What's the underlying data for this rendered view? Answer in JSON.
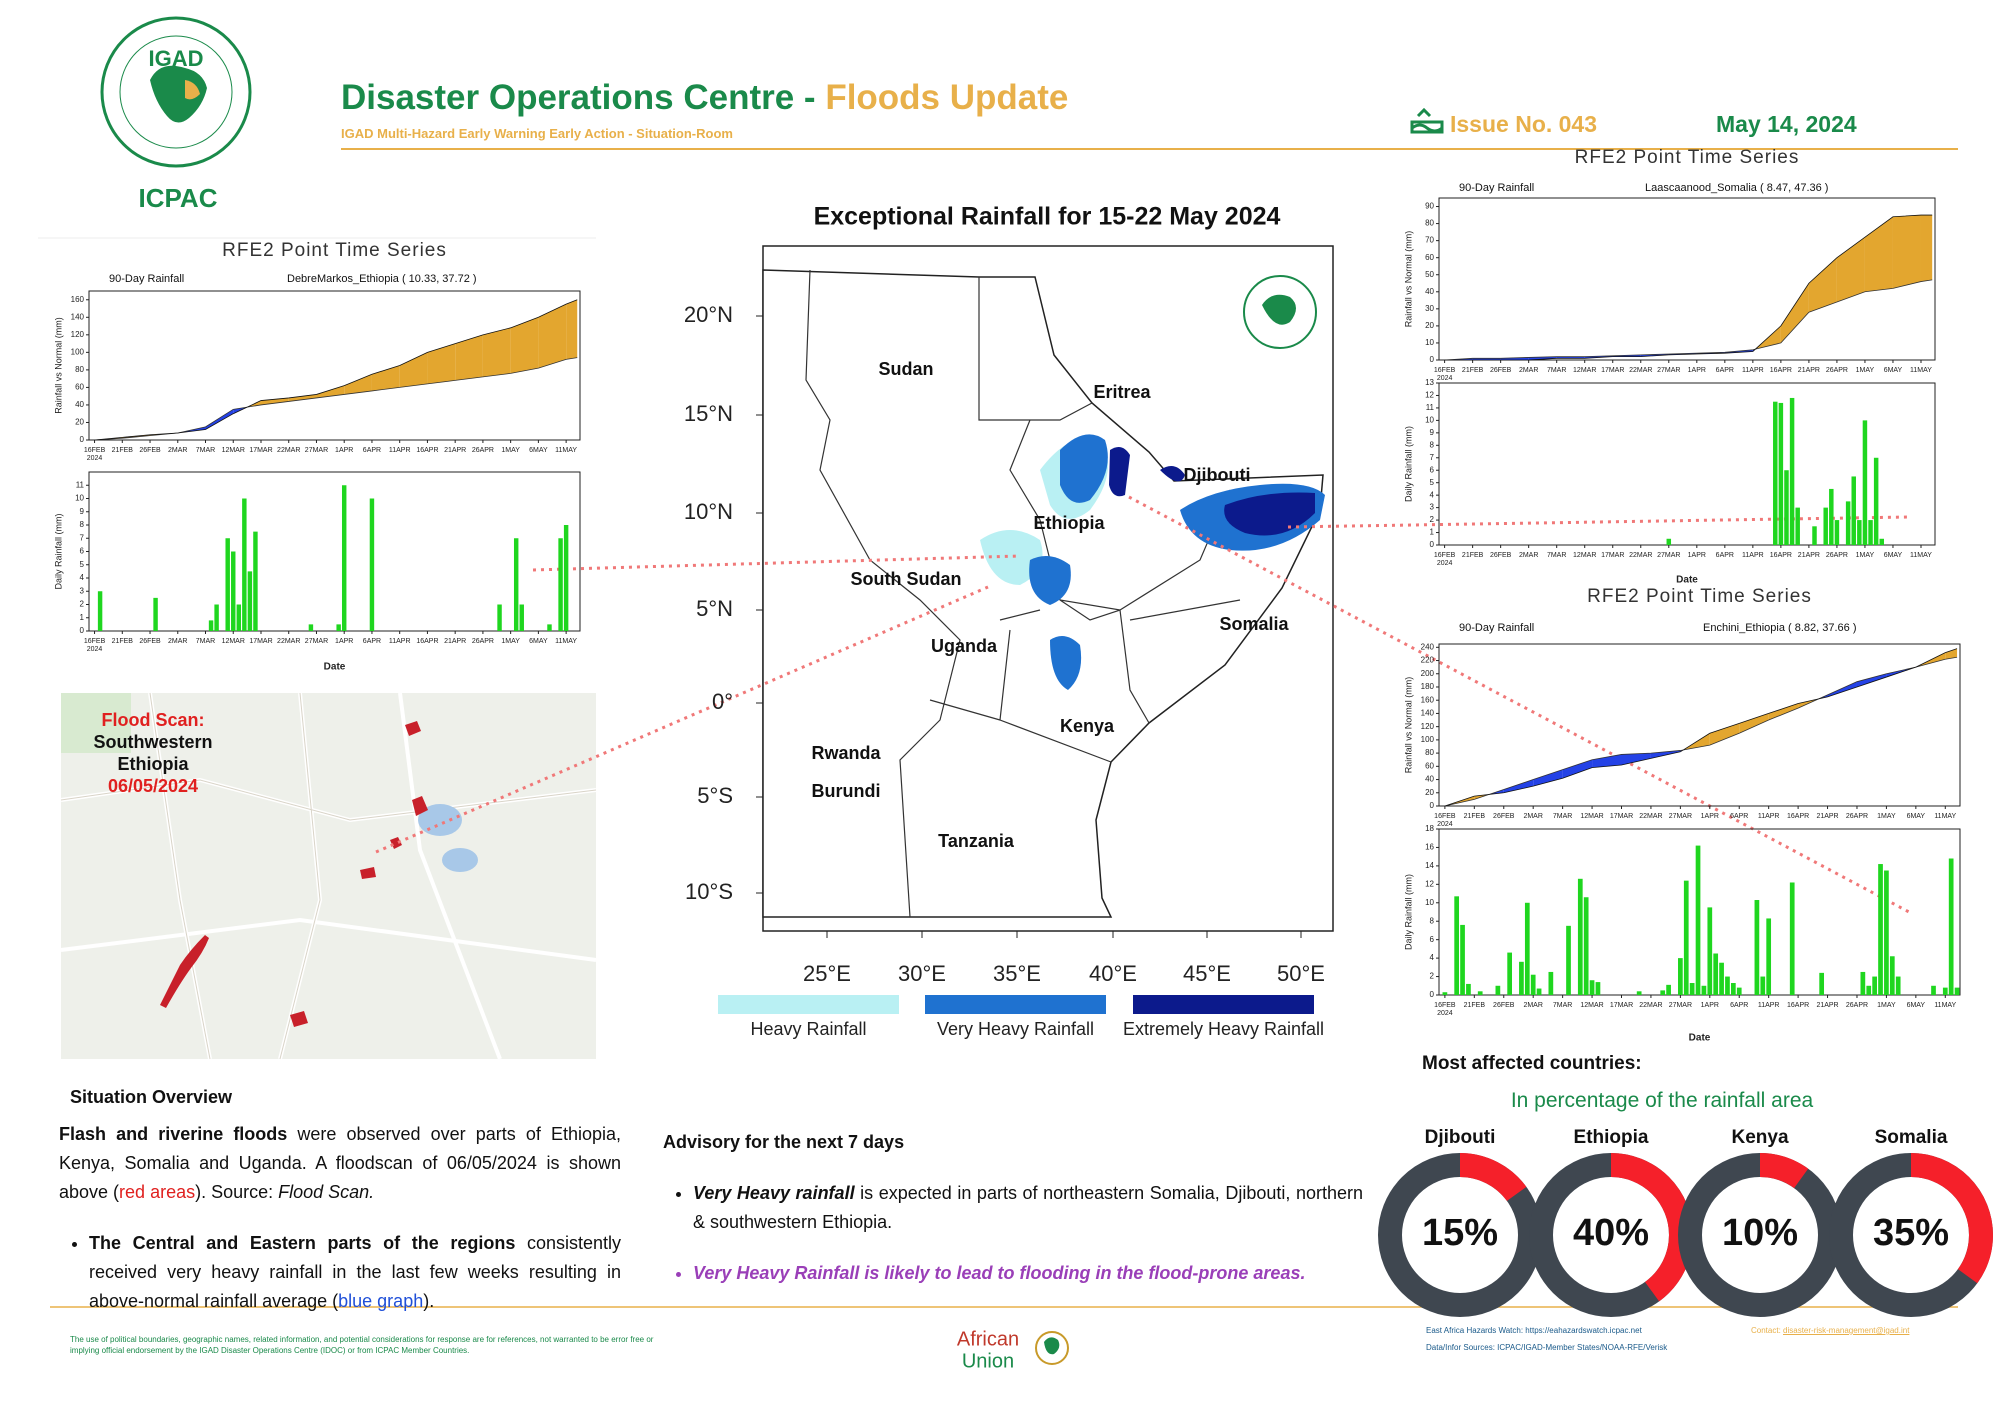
{
  "header": {
    "title_main": "Disaster Operations Centre - ",
    "title_accent": "Floods Update",
    "subtitle": "IGAD Multi-Hazard Early Warning Early Action - Situation-Room",
    "issue": "Issue No. 043",
    "date": "May 14, 2024",
    "logo_text": "IGAD",
    "logo_caption": "ICPAC"
  },
  "date_axis": {
    "xlim": [
      -1,
      87.5
    ],
    "year": "2024",
    "label": "Date",
    "xticks": [
      {
        "value": 0,
        "label": "16FEB"
      },
      {
        "value": 5,
        "label": "21FEB"
      },
      {
        "value": 10,
        "label": "26FEB"
      },
      {
        "value": 15,
        "label": "2MAR"
      },
      {
        "value": 20,
        "label": "7MAR"
      },
      {
        "value": 25,
        "label": "12MAR"
      },
      {
        "value": 30,
        "label": "17MAR"
      },
      {
        "value": 35,
        "label": "22MAR"
      },
      {
        "value": 40,
        "label": "27MAR"
      },
      {
        "value": 45,
        "label": "1APR"
      },
      {
        "value": 50,
        "label": "6APR"
      },
      {
        "value": 55,
        "label": "11APR"
      },
      {
        "value": 60,
        "label": "16APR"
      },
      {
        "value": 65,
        "label": "21APR"
      },
      {
        "value": 70,
        "label": "26APR"
      },
      {
        "value": 75,
        "label": "1MAY"
      },
      {
        "value": 80,
        "label": "6MAY"
      },
      {
        "value": 85,
        "label": "11MAY"
      }
    ]
  },
  "timeseries": [
    {
      "title": "RFE2 Point Time Series",
      "subtitle": "90-Day Rainfall",
      "location": "DebreMarkos_Ethiopia ( 10.33, 37.72 )",
      "cumulative": {
        "ylabel": "Rainfall vs Normal (mm)",
        "ylim": [
          0,
          170
        ],
        "yticks": [
          0,
          20,
          40,
          60,
          80,
          100,
          120,
          140,
          160
        ],
        "x": [
          0,
          5,
          10,
          15,
          20,
          25,
          30,
          35,
          40,
          45,
          50,
          55,
          60,
          65,
          70,
          75,
          80,
          85,
          87
        ],
        "rain": [
          0,
          3,
          6,
          8,
          12,
          30,
          45,
          48,
          52,
          62,
          75,
          85,
          100,
          110,
          120,
          128,
          140,
          155,
          160
        ],
        "normal": [
          0,
          2,
          5,
          8,
          15,
          35,
          40,
          44,
          48,
          52,
          56,
          60,
          64,
          68,
          72,
          76,
          82,
          92,
          94
        ],
        "above_color": "#e3a62f",
        "below_color": "#2442e6"
      },
      "daily": {
        "ylabel": "Daily Rainfall (mm)",
        "ylim": [
          0,
          12
        ],
        "yticks": [
          0,
          1,
          2,
          3,
          4,
          5,
          6,
          7,
          8,
          9,
          10,
          11
        ],
        "color": "#1fd61f",
        "x": [
          1,
          11,
          21,
          22,
          24,
          25,
          26,
          27,
          28,
          29,
          39,
          44,
          45,
          50,
          73,
          76,
          77,
          82,
          84,
          85
        ],
        "values": [
          3,
          2.5,
          0.8,
          2,
          7,
          6,
          2,
          10,
          4.5,
          7.5,
          0.5,
          0.5,
          11,
          10,
          2,
          7,
          2,
          0.5,
          7,
          8
        ]
      }
    },
    {
      "title": "RFE2 Point Time Series",
      "subtitle": "90-Day Rainfall",
      "location": "Laascaanood_Somalia ( 8.47, 47.36 )",
      "cumulative": {
        "ylabel": "Rainfall vs Normal (mm)",
        "ylim": [
          0,
          95
        ],
        "yticks": [
          0,
          10,
          20,
          30,
          40,
          50,
          60,
          70,
          80,
          90
        ],
        "x": [
          0,
          5,
          10,
          15,
          20,
          25,
          30,
          35,
          40,
          45,
          50,
          55,
          60,
          65,
          70,
          75,
          80,
          85,
          87
        ],
        "rain": [
          0,
          0,
          0,
          0,
          1,
          1,
          2,
          2,
          3,
          3.5,
          4,
          5,
          20,
          45,
          60,
          72,
          84,
          85,
          85
        ],
        "normal": [
          0,
          1,
          1,
          1.5,
          2,
          2,
          2.5,
          3,
          3.5,
          4,
          4.5,
          6,
          10,
          28,
          34,
          40,
          42,
          46,
          47
        ],
        "above_color": "#e3a62f",
        "below_color": "#2442e6"
      },
      "daily": {
        "ylabel": "Daily Rainfall (mm)",
        "ylim": [
          0,
          13
        ],
        "yticks": [
          0,
          1,
          2,
          3,
          4,
          5,
          6,
          7,
          8,
          9,
          10,
          11,
          12,
          13
        ],
        "color": "#1fd61f",
        "x": [
          40,
          59,
          60,
          61,
          62,
          63,
          66,
          68,
          69,
          70,
          72,
          73,
          74,
          75,
          76,
          77,
          78
        ],
        "values": [
          0.5,
          11.5,
          11.4,
          6,
          11.8,
          3,
          1.5,
          3,
          4.5,
          2,
          3.5,
          5.5,
          2,
          10,
          2,
          7,
          0.5
        ]
      }
    },
    {
      "title": "RFE2 Point Time Series",
      "subtitle": "90-Day Rainfall",
      "location": "Enchini_Ethiopia ( 8.82, 37.66 )",
      "cumulative": {
        "ylabel": "Rainfall vs Normal (mm)",
        "ylim": [
          0,
          245
        ],
        "yticks": [
          0,
          20,
          40,
          60,
          80,
          100,
          120,
          140,
          160,
          180,
          200,
          220,
          240
        ],
        "x": [
          0,
          5,
          10,
          15,
          20,
          25,
          30,
          35,
          40,
          45,
          50,
          55,
          60,
          65,
          70,
          75,
          80,
          85,
          87
        ],
        "rain": [
          0,
          15,
          20,
          30,
          42,
          58,
          62,
          72,
          82,
          110,
          125,
          140,
          155,
          165,
          180,
          195,
          210,
          232,
          238
        ],
        "normal": [
          0,
          10,
          25,
          40,
          55,
          70,
          78,
          80,
          84,
          92,
          110,
          130,
          148,
          168,
          188,
          200,
          210,
          222,
          225
        ],
        "above_color": "#e3a62f",
        "below_color": "#2442e6"
      },
      "daily": {
        "ylabel": "Daily Rainfall (mm)",
        "ylim": [
          0,
          18
        ],
        "yticks": [
          0,
          2,
          4,
          6,
          8,
          10,
          12,
          14,
          16,
          18
        ],
        "color": "#1fd61f",
        "x": [
          0,
          2,
          3,
          4,
          6,
          9,
          11,
          13,
          14,
          15,
          16,
          18,
          21,
          23,
          24,
          25,
          26,
          33,
          37,
          38,
          40,
          41,
          42,
          43,
          44,
          45,
          46,
          47,
          48,
          49,
          50,
          53,
          54,
          55,
          59,
          64,
          71,
          72,
          73,
          74,
          75,
          76,
          77,
          83,
          85,
          86,
          87
        ],
        "values": [
          0.3,
          10.7,
          7.6,
          1.2,
          0.4,
          1,
          4.6,
          3.6,
          10,
          2.2,
          0.7,
          2.5,
          7.5,
          12.6,
          10.6,
          1.6,
          1.4,
          0.4,
          0.5,
          1.1,
          4,
          12.4,
          1.3,
          16.2,
          1,
          9.5,
          4.5,
          3.5,
          2,
          1.3,
          0.8,
          10.3,
          2,
          8.3,
          12.2,
          2.4,
          2.5,
          1,
          2,
          14.2,
          13.5,
          4.2,
          2,
          1,
          0.8,
          14.8,
          0.8
        ]
      }
    }
  ],
  "map": {
    "title": "Exceptional Rainfall for 15-22 May 2024",
    "lat_labels": [
      "20°N",
      "15°N",
      "10°N",
      "5°N",
      "0°",
      "5°S",
      "10°S"
    ],
    "lon_labels": [
      "25°E",
      "30°E",
      "35°E",
      "40°E",
      "45°E",
      "50°E"
    ],
    "countries": [
      "Sudan",
      "Eritrea",
      "Djibouti",
      "Ethiopia",
      "South Sudan",
      "Somalia",
      "Uganda",
      "Kenya",
      "Rwanda",
      "Burundi",
      "Tanzania"
    ],
    "legend": [
      {
        "label": "Heavy Rainfall",
        "color": "#b9f0f3"
      },
      {
        "label": "Very Heavy Rainfall",
        "color": "#1f72d0"
      },
      {
        "label": "Extremely Heavy Rainfall",
        "color": "#0c1a8c"
      }
    ]
  },
  "flood_scan": {
    "lines": [
      "Flood Scan:",
      "Southwestern",
      "Ethiopia",
      "06/05/2024"
    ]
  },
  "situation": {
    "heading": "Situation Overview",
    "paragraph": [
      {
        "text": "Flash and riverine floods",
        "style": "bold"
      },
      {
        "text": " were observed over parts of Ethiopia, Kenya, Somalia and Uganda. A floodscan of 06/05/2024 is shown above ("
      },
      {
        "text": "red areas",
        "style": "red"
      },
      {
        "text": "). Source: "
      },
      {
        "text": "Flood Scan.",
        "style": "italic"
      }
    ],
    "bullets": [
      [
        {
          "text": "The Central and Eastern parts of the regions",
          "style": "bold"
        },
        {
          "text": " consistently received very heavy rainfall in the last few weeks resulting in above-normal rainfall average ("
        },
        {
          "text": "blue graph",
          "style": "blue"
        },
        {
          "text": ")."
        }
      ]
    ]
  },
  "advisory": {
    "heading": "Advisory for the next 7 days",
    "bullets": [
      [
        {
          "text": "Very Heavy rainfall",
          "style": "bolditalic"
        },
        {
          "text": " is expected in parts of northeastern Somalia, Djibouti, northern & southwestern Ethiopia."
        }
      ],
      [
        {
          "text": "Very Heavy Rainfall is likely to lead to flooding in the flood-prone areas.",
          "style": "purple"
        }
      ]
    ]
  },
  "affected": {
    "heading": "Most affected countries:",
    "subheading": "In percentage of the rainfall area",
    "countries": [
      {
        "name": "Djibouti",
        "value": 15,
        "label": "15%"
      },
      {
        "name": "Ethiopia",
        "value": 40,
        "label": "40%"
      },
      {
        "name": "Kenya",
        "value": 10,
        "label": "10%"
      },
      {
        "name": "Somalia",
        "value": 35,
        "label": "35%"
      }
    ]
  },
  "footer": {
    "disclaimer": "The use of political boundaries, geographic names, related information, and potential considerations for response are for references, not warranted to be error free or implying official endorsement by the IGAD Disaster Operations Centre (IDOC) or from ICPAC Member Countries.",
    "au_line1": "African",
    "au_line2": "Union",
    "watch": "East Africa Hazards Watch: https://eahazardswatch.icpac.net",
    "sources": "Data/Infor Sources:  ICPAC/IGAD-Member States/NOAA-RFE/Verisk",
    "contact_label": "Contact: ",
    "contact": "disaster-risk-management@igad.int"
  }
}
